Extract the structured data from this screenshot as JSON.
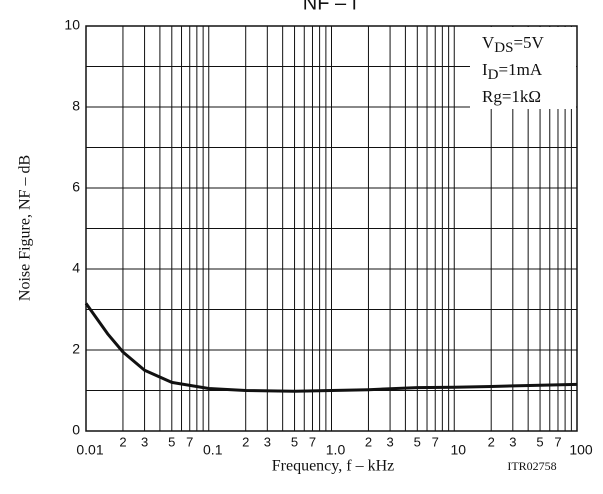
{
  "chart_data": {
    "type": "line",
    "title": "NF – f",
    "xlabel": "Frequency, f – kHz",
    "ylabel": "Noise Figure, NF – dB",
    "note": "ITR02758",
    "xscale": "log",
    "xlim": [
      0.01,
      100
    ],
    "ylim": [
      0,
      10
    ],
    "xticks": [
      0.01,
      {
        "value": 0.02,
        "label": "2"
      },
      {
        "value": 0.03,
        "label": "3"
      },
      {
        "value": 0.05,
        "label": "5"
      },
      {
        "value": 0.07,
        "label": "7"
      },
      0.1,
      {
        "value": 0.2,
        "label": "2"
      },
      {
        "value": 0.3,
        "label": "3"
      },
      {
        "value": 0.5,
        "label": "5"
      },
      {
        "value": 0.7,
        "label": "7"
      },
      {
        "value": 1,
        "label": "1.0"
      },
      {
        "value": 2,
        "label": "2"
      },
      {
        "value": 3,
        "label": "3"
      },
      {
        "value": 5,
        "label": "5"
      },
      {
        "value": 7,
        "label": "7"
      },
      10,
      {
        "value": 20,
        "label": "2"
      },
      {
        "value": 30,
        "label": "3"
      },
      {
        "value": 50,
        "label": "5"
      },
      {
        "value": 70,
        "label": "7"
      },
      100
    ],
    "x_minor_ticks": [
      0.04,
      0.06,
      0.08,
      0.09,
      0.4,
      0.6,
      0.8,
      0.9,
      4,
      6,
      8,
      9,
      40,
      60,
      80,
      90
    ],
    "yticks": [
      0,
      2,
      4,
      6,
      8,
      10
    ],
    "y_minor_ticks": [
      1,
      3,
      5,
      7,
      9
    ],
    "grid": true,
    "annotations": [
      {
        "text": "V",
        "sub": "DS",
        "after": "=5V"
      },
      {
        "text": "I",
        "sub": "D",
        "after": "=1mA"
      },
      {
        "text": "Rg=1kΩ"
      }
    ],
    "series": [
      {
        "name": "NF",
        "color": "#111111",
        "x": [
          0.01,
          0.015,
          0.02,
          0.03,
          0.05,
          0.1,
          0.2,
          0.5,
          1,
          2,
          5,
          10,
          20,
          50,
          100
        ],
        "values": [
          3.15,
          2.4,
          1.95,
          1.5,
          1.2,
          1.05,
          1.0,
          0.98,
          1.0,
          1.02,
          1.07,
          1.08,
          1.1,
          1.13,
          1.15
        ]
      }
    ]
  }
}
